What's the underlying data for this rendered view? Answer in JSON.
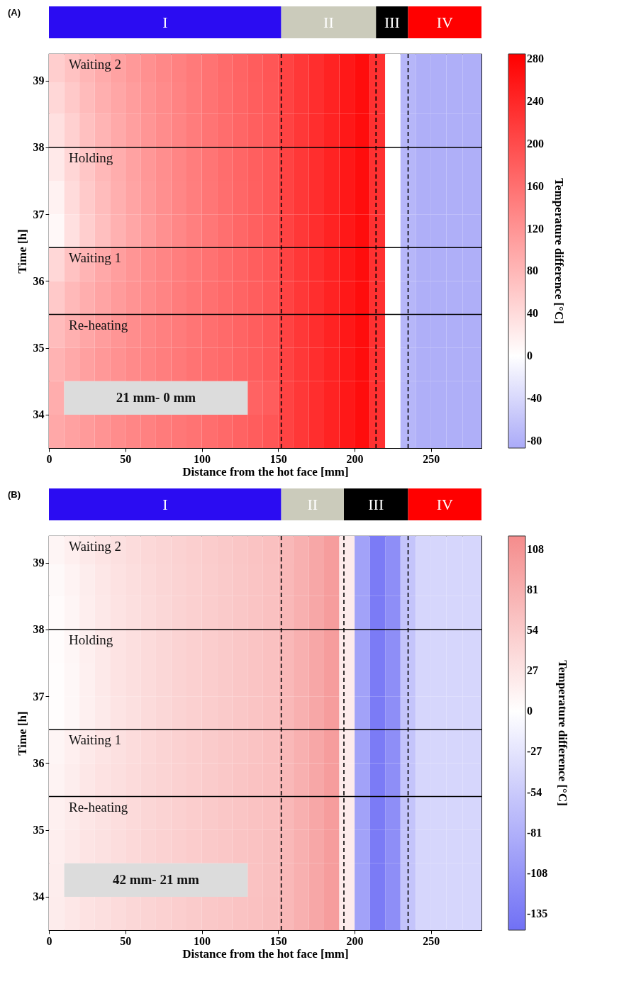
{
  "chart_data": [
    {
      "type": "heatmap",
      "title": "(A)",
      "xlabel": "Distance from the hot face [mm]",
      "ylabel": "Time [h]",
      "clabel": "Temperature difference [°C]",
      "x": [
        5,
        15,
        25,
        35,
        45,
        55,
        65,
        75,
        85,
        95,
        105,
        115,
        125,
        135,
        145,
        155,
        165,
        175,
        185,
        195,
        205,
        215,
        225,
        235,
        245,
        255,
        265,
        276.5
      ],
      "y": [
        39.2,
        38.75,
        38.25,
        37.75,
        37.25,
        36.75,
        36.25,
        35.75,
        35.25,
        34.75,
        34.25,
        33.75
      ],
      "cells": [
        [
          55,
          68,
          82,
          94,
          104,
          114,
          124,
          133,
          141,
          149,
          157,
          165,
          173,
          181,
          189,
          210,
          222,
          234,
          246,
          258,
          270,
          230,
          0,
          -75,
          -82,
          -82,
          -82,
          -82
        ],
        [
          45,
          60,
          76,
          89,
          100,
          110,
          121,
          130,
          139,
          147,
          156,
          164,
          172,
          180,
          188,
          210,
          222,
          234,
          246,
          258,
          270,
          230,
          0,
          -75,
          -82,
          -82,
          -82,
          -82
        ],
        [
          35,
          53,
          70,
          84,
          96,
          107,
          118,
          128,
          137,
          146,
          155,
          163,
          171,
          179,
          187,
          210,
          222,
          234,
          246,
          258,
          270,
          230,
          0,
          -75,
          -82,
          -82,
          -82,
          -82
        ],
        [
          25,
          46,
          64,
          79,
          92,
          104,
          116,
          126,
          136,
          145,
          154,
          163,
          171,
          179,
          187,
          210,
          222,
          234,
          246,
          258,
          270,
          230,
          0,
          -75,
          -82,
          -82,
          -82,
          -82
        ],
        [
          15,
          40,
          59,
          75,
          89,
          102,
          114,
          125,
          135,
          144,
          153,
          162,
          170,
          178,
          187,
          210,
          222,
          234,
          246,
          258,
          270,
          230,
          0,
          -75,
          -82,
          -82,
          -82,
          -82
        ],
        [
          8,
          35,
          55,
          72,
          87,
          100,
          112,
          124,
          134,
          143,
          152,
          161,
          170,
          178,
          187,
          210,
          222,
          234,
          246,
          258,
          270,
          230,
          0,
          -75,
          -82,
          -82,
          -82,
          -82
        ],
        [
          45,
          68,
          84,
          97,
          108,
          118,
          128,
          136,
          144,
          151,
          158,
          165,
          172,
          180,
          188,
          210,
          222,
          234,
          246,
          258,
          270,
          230,
          0,
          -75,
          -82,
          -82,
          -82,
          -82
        ],
        [
          60,
          78,
          91,
          102,
          112,
          121,
          130,
          138,
          146,
          153,
          160,
          166,
          173,
          180,
          188,
          210,
          222,
          234,
          246,
          258,
          270,
          230,
          0,
          -75,
          -82,
          -82,
          -82,
          -82
        ],
        [
          75,
          88,
          100,
          110,
          119,
          127,
          135,
          142,
          148,
          154,
          161,
          167,
          173,
          180,
          188,
          210,
          222,
          234,
          246,
          258,
          270,
          230,
          0,
          -75,
          -82,
          -82,
          -82,
          -82
        ],
        [
          85,
          96,
          106,
          115,
          123,
          131,
          138,
          144,
          150,
          156,
          162,
          167,
          173,
          180,
          188,
          210,
          222,
          234,
          246,
          258,
          270,
          230,
          0,
          -75,
          -82,
          -82,
          -82,
          -82
        ],
        [
          92,
          null,
          null,
          null,
          null,
          null,
          null,
          null,
          null,
          null,
          null,
          null,
          null,
          174,
          181,
          210,
          222,
          234,
          246,
          258,
          270,
          230,
          0,
          -75,
          -82,
          -82,
          -82,
          -82
        ],
        [
          97,
          105,
          113,
          121,
          128,
          135,
          141,
          147,
          152,
          157,
          162,
          168,
          174,
          181,
          189,
          210,
          222,
          234,
          246,
          258,
          270,
          230,
          0,
          -75,
          -82,
          -82,
          -82,
          -82
        ]
      ],
      "colors": [
        "#aaaaf8",
        "#ffffff",
        "#ff0000"
      ],
      "xlim": [
        0,
        283
      ],
      "xticks": [
        0,
        50,
        100,
        150,
        200,
        250
      ],
      "ylim": [
        33.5,
        39.4
      ],
      "yticks": [
        34,
        35,
        36,
        37,
        38,
        39
      ],
      "clim": [
        -87,
        285
      ],
      "cticks": [
        -80,
        -40,
        0,
        40,
        80,
        120,
        160,
        200,
        240,
        280
      ],
      "ref_lines": [
        {
          "axis": "x",
          "value": 152,
          "color": "#000000",
          "line_style": "dashed"
        },
        {
          "axis": "x",
          "value": 214,
          "color": "#000000",
          "line_style": "dashed"
        },
        {
          "axis": "x",
          "value": 235,
          "color": "#000000",
          "line_style": "dashed"
        },
        {
          "axis": "y",
          "value": 35.5,
          "color": "#000000",
          "line_style": "solid"
        },
        {
          "axis": "y",
          "value": 36.5,
          "color": "#000000",
          "line_style": "solid"
        },
        {
          "axis": "y",
          "value": 38,
          "color": "#000000",
          "line_style": "solid"
        }
      ],
      "annotations": [
        "Waiting 2",
        "Holding",
        "Waiting 1",
        "Re-heating",
        "I",
        "II",
        "III",
        "IV",
        "21 mm- 0 mm"
      ]
    },
    {
      "type": "heatmap",
      "title": "(B)",
      "xlabel": "Distance from the hot face [mm]",
      "ylabel": "Time [h]",
      "clabel": "Temperature difference [°C]",
      "x": [
        5,
        15,
        25,
        35,
        45,
        55,
        65,
        75,
        85,
        95,
        105,
        115,
        125,
        135,
        145,
        155,
        165,
        175,
        185,
        195,
        205,
        215,
        225,
        235,
        245,
        255,
        265,
        276.5
      ],
      "y": [
        39.2,
        38.75,
        38.25,
        37.75,
        37.25,
        36.75,
        36.25,
        35.75,
        35.25,
        34.75,
        34.25,
        33.75
      ],
      "cells": [
        [
          10,
          16,
          22,
          27,
          32,
          36,
          40,
          43,
          46,
          49,
          52,
          55,
          58,
          61,
          64,
          72,
          80,
          90,
          100,
          20,
          -95,
          -135,
          -115,
          -60,
          -42,
          -42,
          -42,
          -42
        ],
        [
          6,
          12,
          18,
          24,
          29,
          34,
          38,
          42,
          45,
          48,
          51,
          54,
          57,
          60,
          63,
          72,
          80,
          90,
          100,
          20,
          -95,
          -135,
          -115,
          -60,
          -42,
          -42,
          -42,
          -42
        ],
        [
          4,
          10,
          17,
          23,
          28,
          33,
          37,
          41,
          45,
          48,
          51,
          54,
          57,
          60,
          63,
          72,
          80,
          90,
          100,
          20,
          -95,
          -135,
          -115,
          -60,
          -42,
          -42,
          -42,
          -42
        ],
        [
          3,
          9,
          16,
          22,
          28,
          33,
          37,
          41,
          45,
          48,
          51,
          54,
          57,
          60,
          63,
          72,
          80,
          90,
          100,
          20,
          -95,
          -135,
          -115,
          -60,
          -42,
          -42,
          -42,
          -42
        ],
        [
          2,
          8,
          15,
          22,
          28,
          33,
          37,
          41,
          45,
          48,
          51,
          54,
          57,
          60,
          63,
          72,
          80,
          90,
          100,
          20,
          -95,
          -135,
          -115,
          -60,
          -42,
          -42,
          -42,
          -42
        ],
        [
          2,
          8,
          15,
          21,
          27,
          32,
          37,
          41,
          45,
          48,
          51,
          54,
          57,
          60,
          63,
          72,
          80,
          90,
          100,
          20,
          -95,
          -135,
          -115,
          -60,
          -42,
          -42,
          -42,
          -42
        ],
        [
          10,
          16,
          22,
          27,
          32,
          36,
          40,
          44,
          47,
          50,
          53,
          56,
          58,
          61,
          64,
          72,
          80,
          90,
          100,
          20,
          -95,
          -135,
          -115,
          -60,
          -42,
          -42,
          -42,
          -42
        ],
        [
          12,
          18,
          24,
          29,
          33,
          37,
          41,
          44,
          47,
          50,
          53,
          56,
          59,
          62,
          64,
          72,
          80,
          90,
          100,
          20,
          -95,
          -135,
          -115,
          -60,
          -42,
          -42,
          -42,
          -42
        ],
        [
          15,
          20,
          25,
          30,
          34,
          38,
          42,
          45,
          48,
          51,
          54,
          57,
          59,
          62,
          64,
          72,
          80,
          90,
          100,
          20,
          -95,
          -135,
          -115,
          -60,
          -42,
          -42,
          -42,
          -42
        ],
        [
          17,
          22,
          27,
          31,
          35,
          39,
          43,
          46,
          49,
          52,
          55,
          57,
          60,
          62,
          65,
          72,
          80,
          90,
          100,
          20,
          -95,
          -135,
          -115,
          -60,
          -42,
          -42,
          -42,
          -42
        ],
        [
          18,
          null,
          null,
          null,
          null,
          null,
          null,
          null,
          null,
          null,
          null,
          null,
          null,
          62,
          65,
          72,
          80,
          90,
          100,
          20,
          -95,
          -135,
          -115,
          -60,
          -42,
          -42,
          -42,
          -42
        ],
        [
          19,
          24,
          29,
          33,
          37,
          41,
          44,
          47,
          50,
          53,
          56,
          58,
          61,
          63,
          66,
          72,
          80,
          90,
          100,
          20,
          -95,
          -135,
          -115,
          -60,
          -42,
          -42,
          -42,
          -42
        ]
      ],
      "colors": [
        "#7070f5",
        "#ffffff",
        "#f58c8c"
      ],
      "xlim": [
        0,
        283
      ],
      "xticks": [
        0,
        50,
        100,
        150,
        200,
        250
      ],
      "ylim": [
        33.5,
        39.4
      ],
      "yticks": [
        34,
        35,
        36,
        37,
        38,
        39
      ],
      "clim": [
        -146,
        117
      ],
      "cticks": [
        -135,
        -108,
        -81,
        -54,
        -27,
        0,
        27,
        54,
        81,
        108
      ],
      "ref_lines": [
        {
          "axis": "x",
          "value": 152,
          "color": "#000000",
          "line_style": "dashed"
        },
        {
          "axis": "x",
          "value": 193,
          "color": "#000000",
          "line_style": "dashed"
        },
        {
          "axis": "x",
          "value": 235,
          "color": "#000000",
          "line_style": "dashed"
        },
        {
          "axis": "y",
          "value": 35.5,
          "color": "#000000",
          "line_style": "solid"
        },
        {
          "axis": "y",
          "value": 36.5,
          "color": "#000000",
          "line_style": "solid"
        },
        {
          "axis": "y",
          "value": 38,
          "color": "#000000",
          "line_style": "solid"
        }
      ],
      "annotations": [
        "Waiting 2",
        "Holding",
        "Waiting 1",
        "Re-heating",
        "I",
        "II",
        "III",
        "IV",
        "42 mm- 21 mm"
      ]
    }
  ]
}
